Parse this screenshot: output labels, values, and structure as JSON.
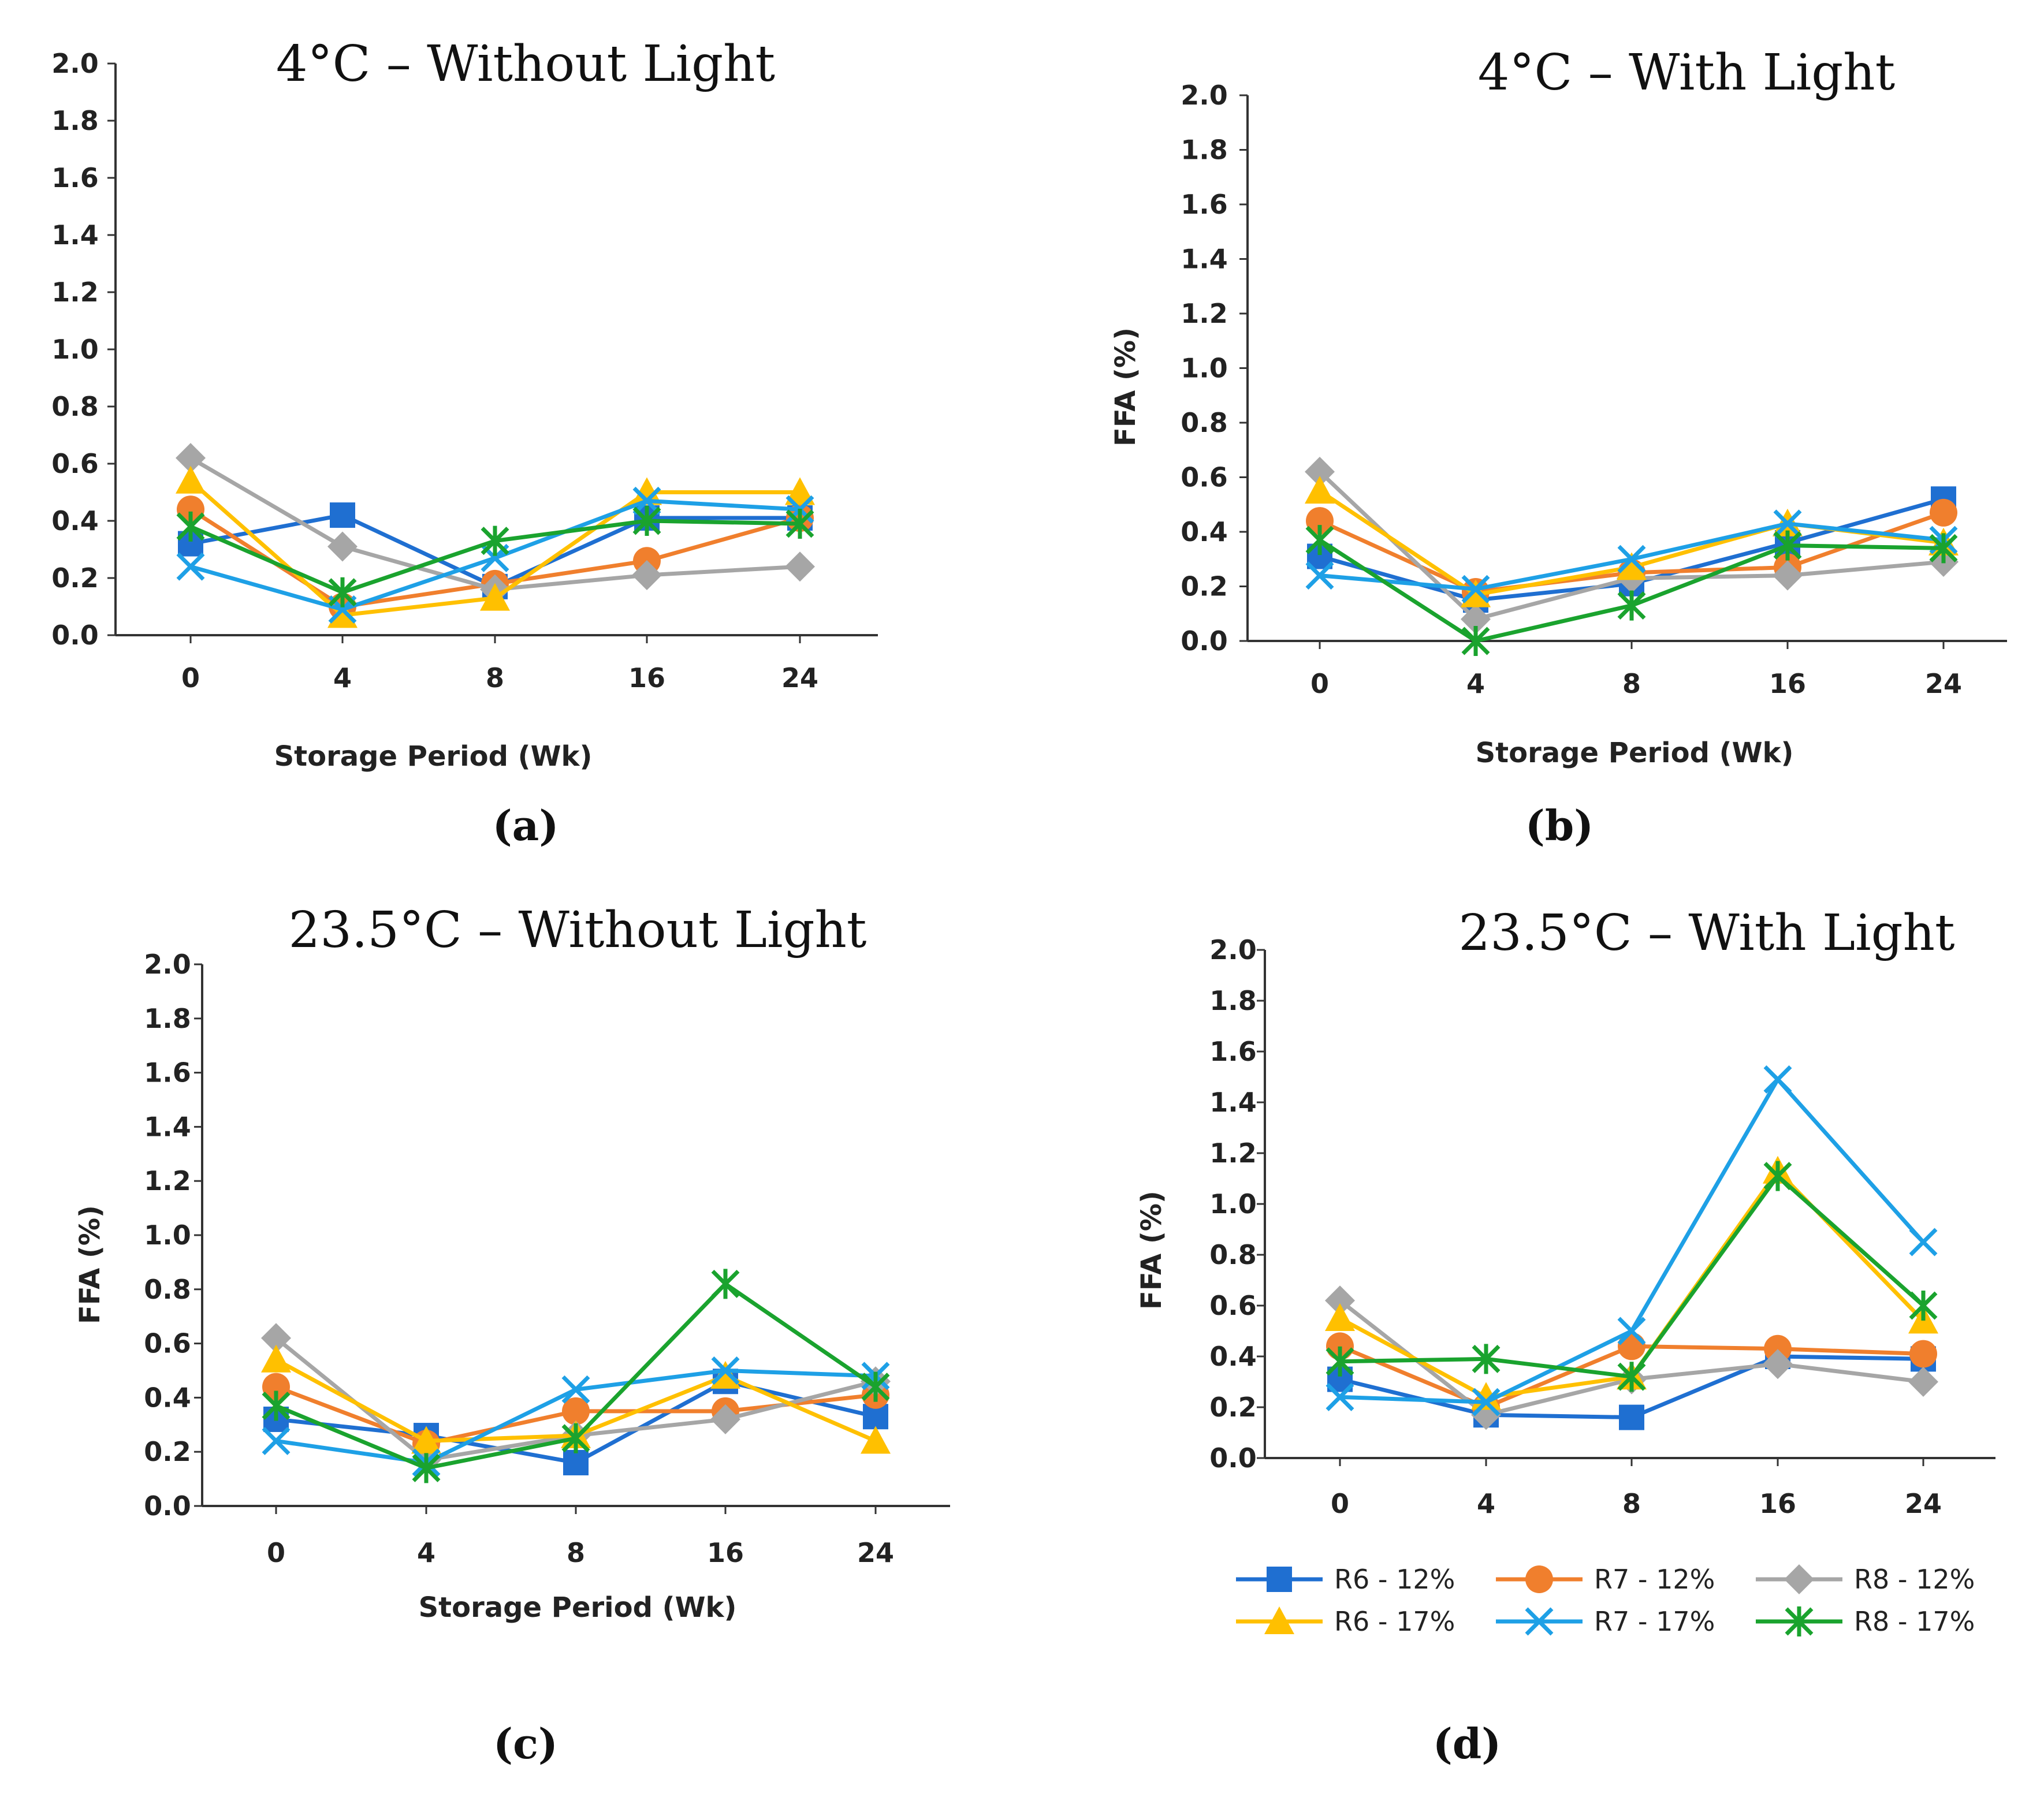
{
  "colors": {
    "R6 - 12%": "#1f6fd1",
    "R7 - 12%": "#f07f2d",
    "R8 - 12%": "#a6a6a6",
    "R6 - 17%": "#ffc000",
    "R7 - 17%": "#1ea0e6",
    "R8 - 17%": "#1aa32e"
  },
  "markers": {
    "R6 - 12%": "square",
    "R7 - 12%": "circle",
    "R8 - 12%": "diamond",
    "R6 - 17%": "triangle",
    "R7 - 17%": "x",
    "R8 - 17%": "star"
  },
  "legend": {
    "entries": [
      "R6 - 12%",
      "R7 - 12%",
      "R8 - 12%",
      "R6 - 17%",
      "R7 - 17%",
      "R8 - 17%"
    ]
  },
  "chart_data": [
    {
      "id": "a",
      "type": "line",
      "title": "4°C – Without Light",
      "caption": "(a)",
      "xlabel": "Storage Period  (Wk)",
      "ylabel": "",
      "categories": [
        "0",
        "4",
        "8",
        "16",
        "24"
      ],
      "ylim": [
        0,
        2
      ],
      "yticks": [
        "0.0",
        "0.2",
        "0.4",
        "0.6",
        "0.8",
        "1.0",
        "1.2",
        "1.4",
        "1.6",
        "1.8",
        "2.0"
      ],
      "series": [
        {
          "name": "R6 - 12%",
          "values": [
            0.32,
            0.42,
            0.17,
            0.41,
            0.41
          ]
        },
        {
          "name": "R7 - 12%",
          "values": [
            0.44,
            0.1,
            0.18,
            0.26,
            0.41
          ]
        },
        {
          "name": "R8 - 12%",
          "values": [
            0.62,
            0.31,
            0.16,
            0.21,
            0.24
          ]
        },
        {
          "name": "R6 - 17%",
          "values": [
            0.54,
            0.07,
            0.13,
            0.5,
            0.5
          ]
        },
        {
          "name": "R7 - 17%",
          "values": [
            0.24,
            0.09,
            0.27,
            0.47,
            0.44
          ]
        },
        {
          "name": "R8 - 17%",
          "values": [
            0.38,
            0.15,
            0.33,
            0.4,
            0.39
          ]
        }
      ]
    },
    {
      "id": "b",
      "type": "line",
      "title": "4°C – With Light",
      "caption": "(b)",
      "xlabel": "Storage Period (Wk)",
      "ylabel": "FFA (%)",
      "categories": [
        "0",
        "4",
        "8",
        "16",
        "24"
      ],
      "ylim": [
        0,
        2
      ],
      "yticks": [
        "0.0",
        "0.2",
        "0.4",
        "0.6",
        "0.8",
        "1.0",
        "1.2",
        "1.4",
        "1.6",
        "1.8",
        "2.0"
      ],
      "series": [
        {
          "name": "R6 - 12%",
          "values": [
            0.31,
            0.15,
            0.21,
            0.36,
            0.52
          ]
        },
        {
          "name": "R7 - 12%",
          "values": [
            0.44,
            0.18,
            0.25,
            0.27,
            0.47
          ]
        },
        {
          "name": "R8 - 12%",
          "values": [
            0.62,
            0.08,
            0.23,
            0.24,
            0.29
          ]
        },
        {
          "name": "R6 - 17%",
          "values": [
            0.55,
            0.17,
            0.27,
            0.43,
            0.36
          ]
        },
        {
          "name": "R7 - 17%",
          "values": [
            0.24,
            0.19,
            0.3,
            0.43,
            0.37
          ]
        },
        {
          "name": "R8 - 17%",
          "values": [
            0.37,
            0.0,
            0.13,
            0.35,
            0.34
          ]
        }
      ]
    },
    {
      "id": "c",
      "type": "line",
      "title": "23.5°C – Without Light",
      "caption": "(c)",
      "xlabel": "Storage Period (Wk)",
      "ylabel": "FFA (%)",
      "categories": [
        "0",
        "4",
        "8",
        "16",
        "24"
      ],
      "ylim": [
        0,
        2
      ],
      "yticks": [
        "0.0",
        "0.2",
        "0.4",
        "0.6",
        "0.8",
        "1.0",
        "1.2",
        "1.4",
        "1.6",
        "1.8",
        "2.0"
      ],
      "series": [
        {
          "name": "R6 - 12%",
          "values": [
            0.32,
            0.26,
            0.16,
            0.46,
            0.33
          ]
        },
        {
          "name": "R7 - 12%",
          "values": [
            0.44,
            0.23,
            0.35,
            0.35,
            0.41
          ]
        },
        {
          "name": "R8 - 12%",
          "values": [
            0.62,
            0.17,
            0.26,
            0.32,
            0.46
          ]
        },
        {
          "name": "R6 - 17%",
          "values": [
            0.54,
            0.24,
            0.26,
            0.48,
            0.24
          ]
        },
        {
          "name": "R7 - 17%",
          "values": [
            0.24,
            0.16,
            0.43,
            0.5,
            0.48
          ]
        },
        {
          "name": "R8 - 17%",
          "values": [
            0.37,
            0.14,
            0.25,
            0.82,
            0.44
          ]
        }
      ]
    },
    {
      "id": "d",
      "type": "line",
      "title": "23.5°C – With Light",
      "caption": "(d)",
      "xlabel": "",
      "ylabel": "FFA (%)",
      "categories": [
        "0",
        "4",
        "8",
        "16",
        "24"
      ],
      "ylim": [
        0,
        2
      ],
      "yticks": [
        "0.0",
        "0.2",
        "0.4",
        "0.6",
        "0.8",
        "1.0",
        "1.2",
        "1.4",
        "1.6",
        "1.8",
        "2.0"
      ],
      "series": [
        {
          "name": "R6 - 12%",
          "values": [
            0.31,
            0.17,
            0.16,
            0.4,
            0.39
          ]
        },
        {
          "name": "R7 - 12%",
          "values": [
            0.44,
            0.2,
            0.44,
            0.43,
            0.41
          ]
        },
        {
          "name": "R8 - 12%",
          "values": [
            0.62,
            0.17,
            0.31,
            0.37,
            0.3
          ]
        },
        {
          "name": "R6 - 17%",
          "values": [
            0.55,
            0.24,
            0.32,
            1.13,
            0.54
          ]
        },
        {
          "name": "R7 - 17%",
          "values": [
            0.24,
            0.22,
            0.5,
            1.49,
            0.85
          ]
        },
        {
          "name": "R8 - 17%",
          "values": [
            0.38,
            0.39,
            0.32,
            1.11,
            0.6
          ]
        }
      ]
    }
  ]
}
